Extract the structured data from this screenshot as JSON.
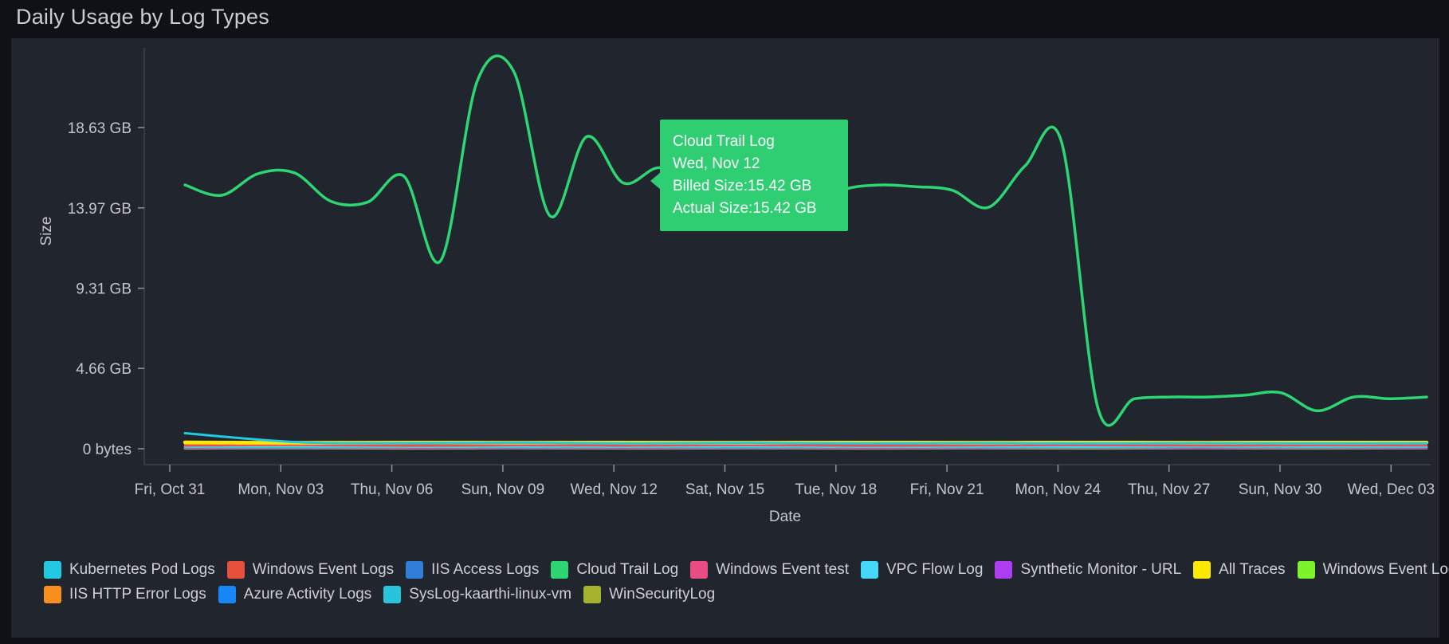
{
  "title": "Daily Usage by Log Types",
  "tooltip": {
    "series": "Cloud Trail Log",
    "date": "Wed, Nov 12",
    "billed_label": "Billed Size:15.42 GB",
    "actual_label": "Actual Size:15.42 GB",
    "bg_color": "#2fce72",
    "text_color": "#ffffff"
  },
  "chart_data": {
    "type": "line",
    "title": "Daily Usage by Log Types",
    "xlabel": "Date",
    "ylabel": "Size",
    "grid": false,
    "legend_position": "bottom",
    "ylim": [
      0,
      22.5
    ],
    "x_domain_days": 34,
    "x_tick_step_days": 3,
    "x_tick_labels": [
      "Fri, Oct 31",
      "Mon, Nov 03",
      "Thu, Nov 06",
      "Sun, Nov 09",
      "Wed, Nov 12",
      "Sat, Nov 15",
      "Tue, Nov 18",
      "Fri, Nov 21",
      "Mon, Nov 24",
      "Thu, Nov 27",
      "Sun, Nov 30",
      "Wed, Dec 03"
    ],
    "y_ticks": [
      {
        "label": "0 bytes",
        "value": 0
      },
      {
        "label": "4.66 GB",
        "value": 4.66
      },
      {
        "label": "9.31 GB",
        "value": 9.31
      },
      {
        "label": "13.97 GB",
        "value": 13.97
      },
      {
        "label": "18.63 GB",
        "value": 18.63
      }
    ],
    "highlight": {
      "series": "Cloud Trail Log",
      "x_label": "Wed, Nov 12",
      "billed_gb": 15.42,
      "actual_gb": 15.42
    },
    "series": [
      {
        "name": "WinSecurityLog",
        "color": "#a5b22d",
        "width": 3,
        "values": [
          0.02,
          0.03,
          0.02,
          0.03,
          0.02,
          0.03,
          0.02,
          0.03,
          0.02,
          0.03,
          0.02,
          0.03
        ]
      },
      {
        "name": "Windows Event Log",
        "color": "#7df32c",
        "width": 2.5,
        "values": [
          0.08,
          0.09,
          0.07,
          0.09,
          0.08,
          0.1,
          0.07,
          0.09,
          0.08,
          0.09,
          0.08,
          0.09
        ]
      },
      {
        "name": "IIS Access Logs",
        "color": "#2f7ed8",
        "width": 2.5,
        "values": [
          0.13,
          0.14,
          0.12,
          0.13,
          0.14,
          0.12,
          0.13,
          0.14,
          0.12,
          0.13,
          0.14,
          0.13
        ]
      },
      {
        "name": "Synthetic Monitor - URL",
        "color": "#ae3df2",
        "width": 2.5,
        "values": [
          0.06,
          0.05,
          0.06,
          0.05,
          0.06,
          0.05,
          0.06,
          0.05,
          0.06,
          0.05,
          0.06,
          0.05
        ]
      },
      {
        "name": "Azure Activity Logs",
        "color": "#1787f5",
        "width": 2.5,
        "values": [
          0.11,
          0.12,
          0.1,
          0.12,
          0.11,
          0.13,
          0.1,
          0.12,
          0.11,
          0.12,
          0.11,
          0.12
        ]
      },
      {
        "name": "SysLog-kaarthi-linux-vm",
        "color": "#28c4dc",
        "width": 2.5,
        "values": [
          0.1,
          0.08,
          0.1,
          0.09,
          0.1,
          0.08,
          0.1,
          0.09,
          0.08,
          0.1,
          0.09,
          0.1
        ]
      },
      {
        "name": "VPC Flow Log",
        "color": "#46d8f8",
        "width": 2.5,
        "values": [
          0.13,
          0.15,
          0.12,
          0.14,
          0.13,
          0.15,
          0.12,
          0.14,
          0.13,
          0.15,
          0.13,
          0.14
        ]
      },
      {
        "name": "Windows Event test",
        "color": "#ea4d83",
        "width": 2.5,
        "values": [
          0.17,
          0.2,
          0.16,
          0.19,
          0.17,
          0.2,
          0.16,
          0.18,
          0.2,
          0.17,
          0.19,
          0.18
        ]
      },
      {
        "name": "Windows Event Logs",
        "color": "#e8503c",
        "width": 2.5,
        "values": [
          0.22,
          0.25,
          0.2,
          0.24,
          0.22,
          0.26,
          0.21,
          0.23,
          0.25,
          0.22,
          0.24,
          0.22
        ]
      },
      {
        "name": "IIS HTTP Error Logs",
        "color": "#f78f1e",
        "width": 2.5,
        "values": [
          0.3,
          0.27,
          0.31,
          0.33,
          0.28,
          0.3,
          0.32,
          0.29,
          0.31,
          0.3,
          0.28,
          0.3
        ]
      },
      {
        "name": "All Traces",
        "color": "#ffe900",
        "width": 4.5,
        "values": [
          0.37,
          0.35,
          0.36,
          0.35,
          0.36,
          0.35,
          0.36,
          0.35,
          0.36,
          0.35,
          0.36,
          0.36
        ]
      },
      {
        "name": "Kubernetes Pod Logs",
        "color": "#23c8e3",
        "width": 3,
        "values": [
          0.9,
          0.38,
          0.33,
          0.35,
          0.31,
          0.34,
          0.31,
          0.33,
          0.31,
          0.33,
          0.31,
          0.32
        ]
      },
      {
        "name": "Cloud Trail Log",
        "color": "#2ed573",
        "width": 3.5,
        "values": [
          15.3,
          14.7,
          15.95,
          16.0,
          14.35,
          14.3,
          15.8,
          10.9,
          21.3,
          21.9,
          13.5,
          18.1,
          15.42,
          16.3,
          15.1,
          14.2,
          13.85,
          13.8,
          15.0,
          15.3,
          15.2,
          15.0,
          14.0,
          16.4,
          17.8,
          2.35,
          2.9,
          3.0,
          3.0,
          3.1,
          3.25,
          2.2,
          3.0,
          2.9,
          3.0
        ]
      }
    ]
  },
  "legend": {
    "items": [
      {
        "label": "Kubernetes Pod Logs",
        "color": "#23c8e3"
      },
      {
        "label": "Windows Event Logs",
        "color": "#e8503c"
      },
      {
        "label": "IIS Access Logs",
        "color": "#2f7ed8"
      },
      {
        "label": "Cloud Trail Log",
        "color": "#2ed573"
      },
      {
        "label": "Windows Event test",
        "color": "#ea4d83"
      },
      {
        "label": "VPC Flow Log",
        "color": "#46d8f8"
      },
      {
        "label": "Synthetic Monitor - URL",
        "color": "#ae3df2"
      },
      {
        "label": "All Traces",
        "color": "#ffe900"
      },
      {
        "label": "Windows Event Log",
        "color": "#7df32c"
      },
      {
        "label": "IIS HTTP Error Logs",
        "color": "#f78f1e"
      },
      {
        "label": "Azure Activity Logs",
        "color": "#1787f5"
      },
      {
        "label": "SysLog-kaarthi-linux-vm",
        "color": "#28c4dc"
      },
      {
        "label": "WinSecurityLog",
        "color": "#a5b22d"
      }
    ],
    "rows": [
      9,
      4
    ]
  }
}
